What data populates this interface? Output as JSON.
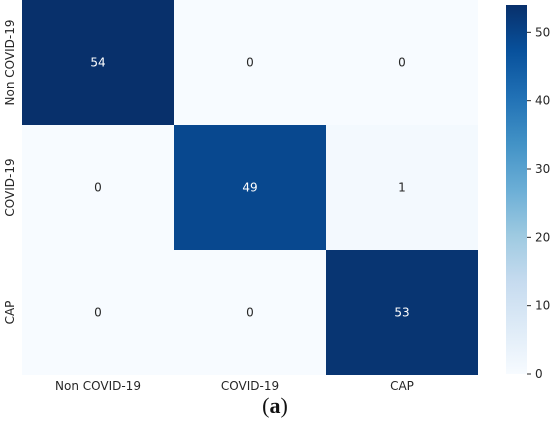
{
  "chart_data": {
    "type": "heatmap",
    "x_categories": [
      "Non COVID-19",
      "COVID-19",
      "CAP"
    ],
    "y_categories": [
      "Non COVID-19",
      "COVID-19",
      "CAP"
    ],
    "values": [
      [
        54,
        0,
        0
      ],
      [
        0,
        49,
        1
      ],
      [
        0,
        0,
        53
      ]
    ],
    "colorbar": {
      "min": 0,
      "max": 54,
      "ticks": [
        0,
        10,
        20,
        30,
        40,
        50
      ]
    },
    "colormap": "Blues",
    "colors": {
      "low": "#f7fbff",
      "high": "#08306b"
    }
  },
  "caption": {
    "open": "(",
    "letter": "a",
    "close": ")"
  }
}
